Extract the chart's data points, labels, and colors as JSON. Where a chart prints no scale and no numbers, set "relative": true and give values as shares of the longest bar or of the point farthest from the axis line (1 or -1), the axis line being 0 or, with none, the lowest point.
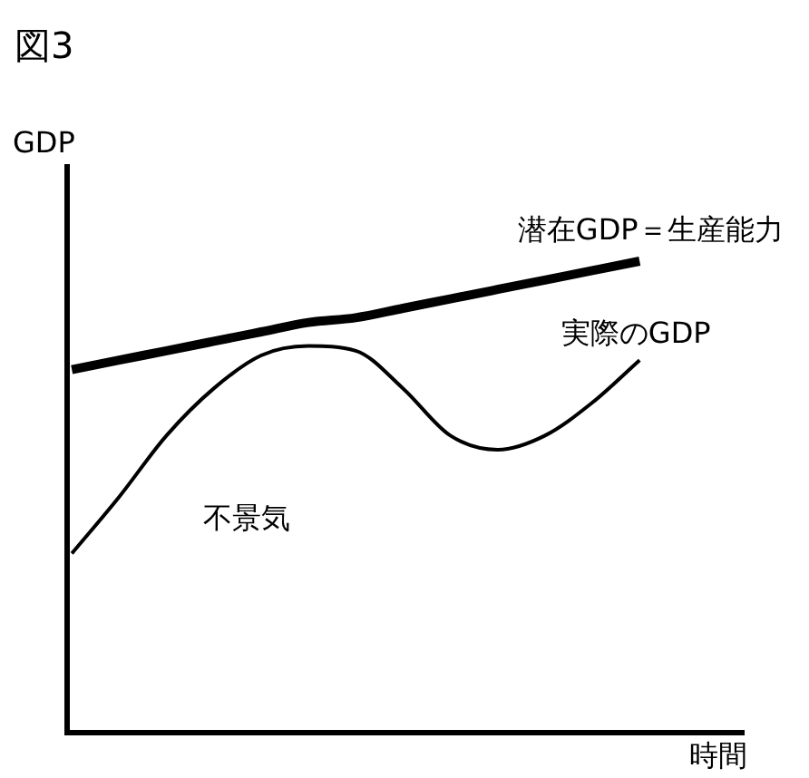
{
  "chart_data": {
    "type": "line",
    "title": "図3",
    "ylabel": "GDP",
    "xlabel": "時間",
    "relative": true,
    "legend": false,
    "marker": "none",
    "line_style": "solid",
    "categories": [
      null,
      null,
      null,
      null,
      null,
      null,
      null,
      null,
      null,
      null,
      null,
      null,
      null
    ],
    "series": [
      {
        "name": "潜在GDP＝生産能力",
        "color": "#000000",
        "values": [
          0.77,
          0.79,
          0.81,
          0.83,
          0.85,
          0.87,
          0.88,
          0.9,
          0.92,
          0.94,
          0.96,
          0.98,
          1
        ]
      },
      {
        "name": "実際のGDP",
        "color": "#000000",
        "values": [
          0.38,
          0.5,
          0.63,
          0.73,
          0.8,
          0.82,
          0.81,
          0.73,
          0.63,
          0.6,
          0.63,
          0.7,
          0.79
        ]
      }
    ],
    "annotations": [
      "不景気"
    ]
  }
}
